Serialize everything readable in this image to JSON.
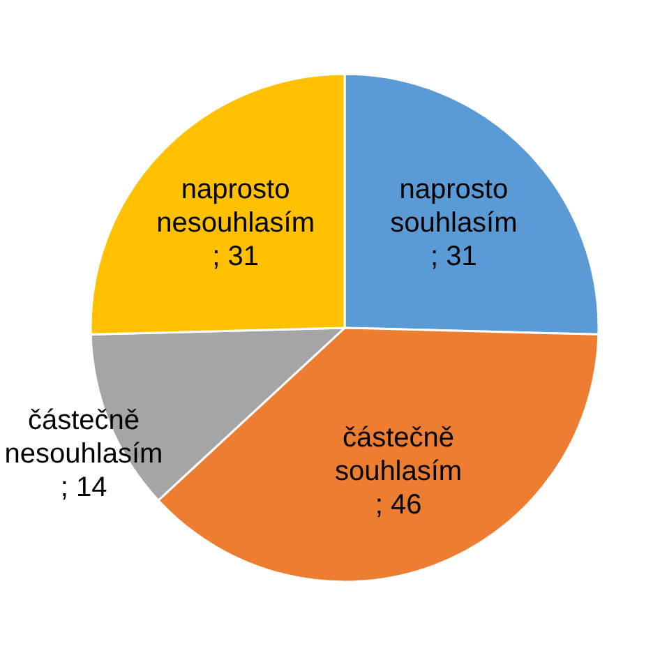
{
  "chart_data": {
    "type": "pie",
    "categories": [
      "naprosto souhlasím",
      "částečně souhlasím",
      "částečně nesouhlasím",
      "naprosto nesouhlasím"
    ],
    "values": [
      31,
      46,
      14,
      31
    ],
    "colors": [
      "#5b9bd5",
      "#ed7d31",
      "#a5a5a5",
      "#ffc000"
    ],
    "value_labels": [
      "; 31",
      "; 46",
      "; 14",
      "; 31"
    ],
    "legend": false
  }
}
